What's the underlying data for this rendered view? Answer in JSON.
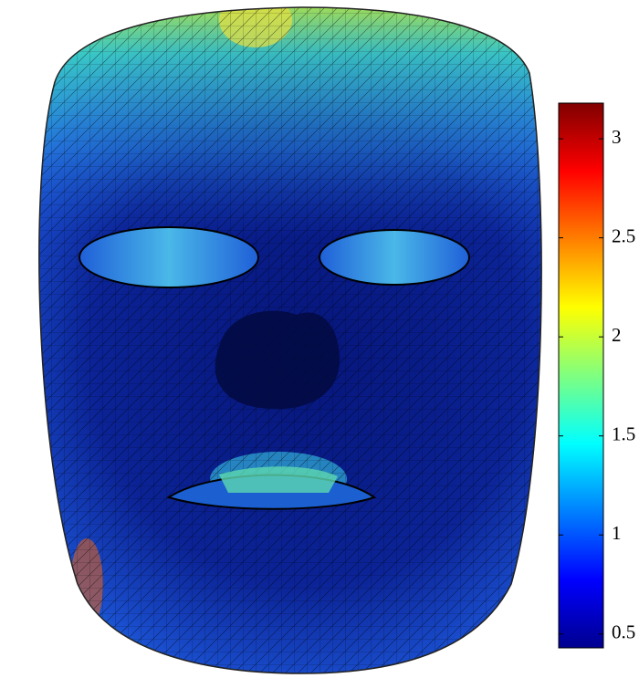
{
  "chart_data": {
    "type": "surface",
    "colormap": "jet",
    "ylim": [
      0.43,
      3.18
    ],
    "yticks": [
      0.5,
      1,
      1.5,
      2,
      2.5,
      3
    ]
  }
}
